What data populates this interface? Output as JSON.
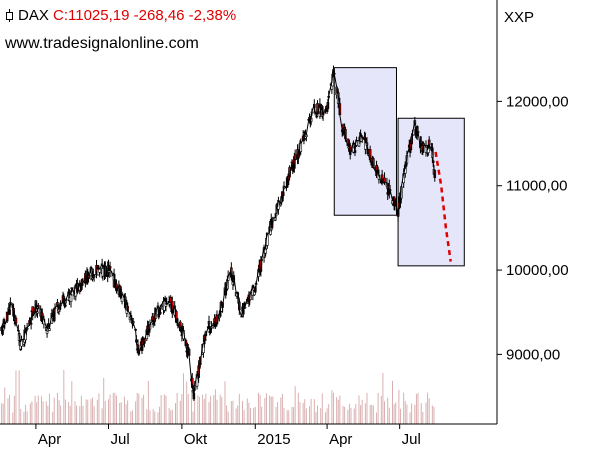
{
  "header": {
    "symbol": "DAX",
    "quote": "C:11025,19 -268,46 -2,38%",
    "website": "www.tradesignalonline.com",
    "instrument_code": "XXP"
  },
  "chart_data": {
    "type": "candlestick",
    "title": "DAX",
    "y_axis_position": "right",
    "ylim": [
      8400,
      12550
    ],
    "y_ticks": [
      {
        "value": 9000,
        "label": "9000,00"
      },
      {
        "value": 10000,
        "label": "10000,00"
      },
      {
        "value": 11000,
        "label": "11000,00"
      },
      {
        "value": 12000,
        "label": "12000,00"
      }
    ],
    "x_range": [
      "2014-02-15",
      "2015-10-31"
    ],
    "x_ticks": [
      {
        "date": "2014-04-01",
        "label": "Apr"
      },
      {
        "date": "2014-07-01",
        "label": "Jul"
      },
      {
        "date": "2014-10-01",
        "label": "Okt"
      },
      {
        "date": "2015-01-01",
        "label": "2015"
      },
      {
        "date": "2015-04-01",
        "label": "Apr"
      },
      {
        "date": "2015-07-01",
        "label": "Jul"
      }
    ],
    "close_series": {
      "name": "DAX",
      "points": [
        [
          "2014-02-15",
          9200
        ],
        [
          "2014-03-01",
          9600
        ],
        [
          "2014-03-14",
          9100
        ],
        [
          "2014-04-01",
          9600
        ],
        [
          "2014-04-15",
          9300
        ],
        [
          "2014-05-01",
          9600
        ],
        [
          "2014-05-15",
          9700
        ],
        [
          "2014-06-01",
          9900
        ],
        [
          "2014-06-15",
          10000
        ],
        [
          "2014-07-01",
          10000
        ],
        [
          "2014-07-15",
          9750
        ],
        [
          "2014-08-01",
          9400
        ],
        [
          "2014-08-08",
          9000
        ],
        [
          "2014-08-20",
          9300
        ],
        [
          "2014-09-01",
          9500
        ],
        [
          "2014-09-15",
          9650
        ],
        [
          "2014-10-01",
          9300
        ],
        [
          "2014-10-10",
          9000
        ],
        [
          "2014-10-16",
          8500
        ],
        [
          "2014-11-01",
          9300
        ],
        [
          "2014-11-15",
          9400
        ],
        [
          "2014-12-01",
          10000
        ],
        [
          "2014-12-15",
          9500
        ],
        [
          "2015-01-01",
          9800
        ],
        [
          "2015-01-20",
          10500
        ],
        [
          "2015-02-01",
          10800
        ],
        [
          "2015-02-15",
          11200
        ],
        [
          "2015-03-01",
          11500
        ],
        [
          "2015-03-15",
          11900
        ],
        [
          "2015-04-01",
          11900
        ],
        [
          "2015-04-10",
          12350
        ],
        [
          "2015-04-20",
          11700
        ],
        [
          "2015-05-01",
          11400
        ],
        [
          "2015-05-15",
          11600
        ],
        [
          "2015-06-01",
          11200
        ],
        [
          "2015-06-15",
          11000
        ],
        [
          "2015-06-29",
          10700
        ],
        [
          "2015-07-10",
          11300
        ],
        [
          "2015-07-20",
          11700
        ],
        [
          "2015-08-01",
          11400
        ],
        [
          "2015-08-10",
          11500
        ],
        [
          "2015-08-15",
          11025
        ]
      ]
    },
    "projection": {
      "style": "dashed",
      "color": "#e00000",
      "points": [
        [
          "2015-08-15",
          11400
        ],
        [
          "2015-08-22",
          11000
        ],
        [
          "2015-08-28",
          10500
        ],
        [
          "2015-09-03",
          10100
        ]
      ]
    },
    "boxes": [
      {
        "x": [
          "2015-04-10",
          "2015-06-27"
        ],
        "y": [
          10650,
          12400
        ],
        "fill": "#e6e6fa"
      },
      {
        "x": [
          "2015-06-29",
          "2015-09-20"
        ],
        "y": [
          10050,
          11800
        ],
        "fill": "#e6e6fa"
      }
    ],
    "volume": {
      "color": "#d9b0b0",
      "shown": true
    },
    "grid": false,
    "legend": "none"
  }
}
